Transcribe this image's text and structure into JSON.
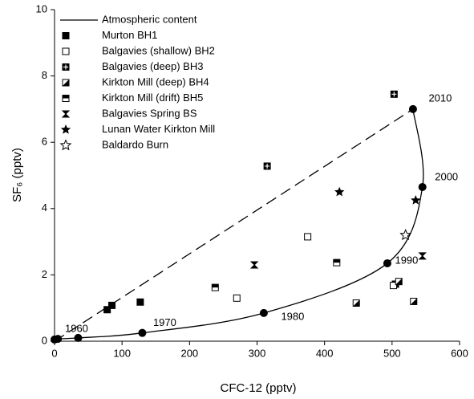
{
  "chart_data": {
    "type": "scatter",
    "x_label": "CFC-12 (pptv)",
    "y_label": "SF₆ (pptv)",
    "xlim": [
      0,
      600
    ],
    "xticks": [
      0,
      100,
      200,
      300,
      400,
      500,
      600
    ],
    "ylim": [
      0,
      10
    ],
    "yticks": [
      0,
      2,
      4,
      6,
      8,
      10
    ],
    "legend": "upper left",
    "series": [
      {
        "name": "Atmospheric content",
        "line": "solid",
        "marker": "circle",
        "color": "#000000",
        "x": [
          0,
          5,
          35,
          130,
          310,
          493,
          545,
          531
        ],
        "values": [
          0.05,
          0.07,
          0.1,
          0.25,
          0.85,
          2.35,
          4.65,
          7.0
        ],
        "point_labels": [
          null,
          null,
          "1960",
          "1970",
          "1980",
          "1990",
          "2000",
          "2010"
        ]
      },
      {
        "line": "dashed",
        "color": "#000000",
        "x": [
          0,
          531
        ],
        "values": [
          0,
          7.0
        ]
      },
      {
        "name": "Murton BH1",
        "marker": "square-filled",
        "color": "#000000",
        "x": [
          78,
          85,
          127,
          505
        ],
        "values": [
          0.95,
          1.08,
          1.18,
          1.72
        ]
      },
      {
        "name": "Balgavies (shallow) BH2",
        "marker": "square-open",
        "color": "#000000",
        "x": [
          270,
          375,
          502
        ],
        "values": [
          1.3,
          3.15,
          1.68
        ]
      },
      {
        "name": "Balgavies (deep) BH3",
        "marker": "square-cross",
        "color": "#000000",
        "x": [
          315,
          503
        ],
        "values": [
          5.28,
          7.45
        ]
      },
      {
        "name": "Kirkton Mill (deep) BH4",
        "marker": "square-half-diag",
        "color": "#000000",
        "x": [
          447,
          510,
          532
        ],
        "values": [
          1.15,
          1.8,
          1.2
        ]
      },
      {
        "name": "Kirkton Mill (drift) BH5",
        "marker": "square-half-horiz",
        "color": "#000000",
        "x": [
          238,
          418
        ],
        "values": [
          1.62,
          2.37
        ]
      },
      {
        "name": "Balgavies Spring BS",
        "marker": "hourglass",
        "color": "#000000",
        "x": [
          296,
          545
        ],
        "values": [
          2.3,
          2.57
        ]
      },
      {
        "name": "Lunan Water Kirkton Mill",
        "marker": "star-filled",
        "color": "#000000",
        "x": [
          422,
          535
        ],
        "values": [
          4.5,
          4.25
        ]
      },
      {
        "name": "Baldardo Burn",
        "marker": "star-open",
        "color": "#000000",
        "x": [
          520
        ],
        "values": [
          3.2
        ]
      }
    ]
  }
}
